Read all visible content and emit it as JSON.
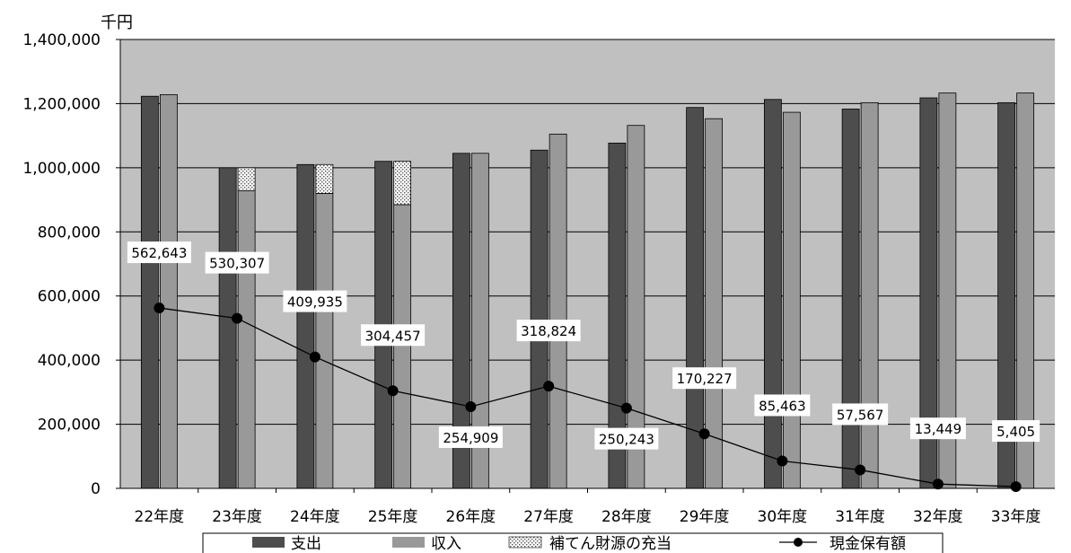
{
  "chart_data": {
    "type": "bar",
    "unit_label": "千円",
    "categories": [
      "22年度",
      "23年度",
      "24年度",
      "25年度",
      "26年度",
      "27年度",
      "28年度",
      "29年度",
      "30年度",
      "31年度",
      "32年度",
      "33年度"
    ],
    "y_ticks": [
      "0",
      "200,000",
      "400,000",
      "600,000",
      "800,000",
      "1,000,000",
      "1,200,000",
      "1,400,000"
    ],
    "ylim": [
      0,
      1400000
    ],
    "grid": true,
    "legend_position": "bottom",
    "series": [
      {
        "name": "支出",
        "kind": "bar",
        "color": "#4d4d4d",
        "values": [
          1223000,
          1000000,
          1010000,
          1020000,
          1045000,
          1055000,
          1077000,
          1188000,
          1213000,
          1183000,
          1218000,
          1203000
        ]
      },
      {
        "name": "収入",
        "kind": "bar",
        "color": "#999999",
        "values": [
          1228000,
          928000,
          920000,
          885000,
          1045000,
          1105000,
          1132000,
          1153000,
          1173000,
          1203000,
          1233000,
          1233000
        ]
      },
      {
        "name": "補てん財源の充当",
        "kind": "stacked-bar",
        "stack_on": "収入",
        "pattern": "dots",
        "values": [
          0,
          72000,
          90000,
          135000,
          0,
          0,
          0,
          0,
          0,
          0,
          0,
          0
        ]
      },
      {
        "name": "現金保有額",
        "kind": "line",
        "color": "#000000",
        "values": [
          562643,
          530307,
          409935,
          304457,
          254909,
          318824,
          250243,
          170227,
          85463,
          57567,
          13449,
          5405
        ],
        "labels": [
          "562,643",
          "530,307",
          "409,935",
          "304,457",
          "254,909",
          "318,824",
          "250,243",
          "170,227",
          "85,463",
          "57,567",
          "13,449",
          "5,405"
        ]
      }
    ]
  }
}
